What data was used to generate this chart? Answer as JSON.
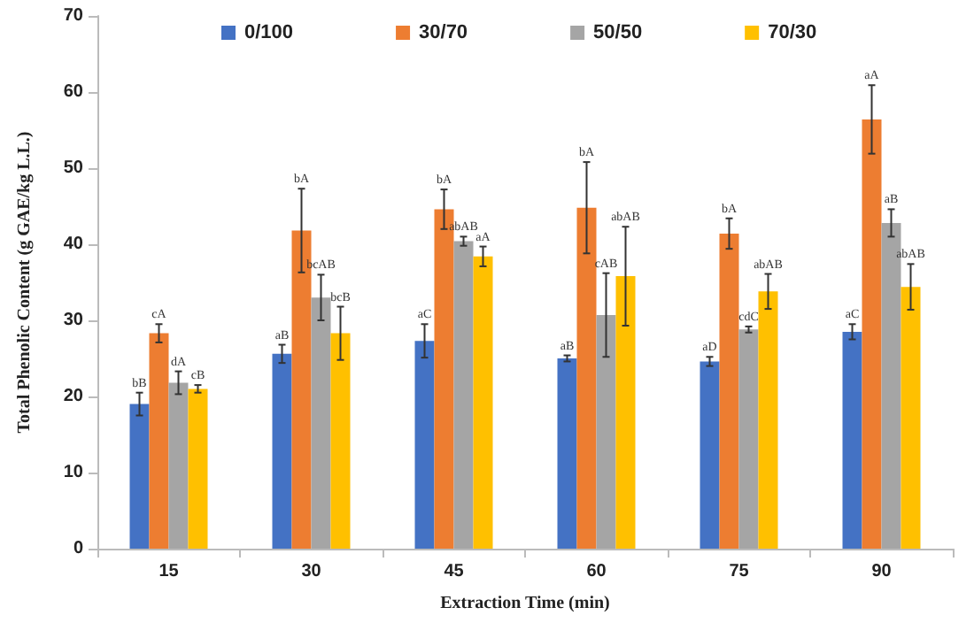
{
  "chart_data": {
    "type": "bar",
    "xlabel": "Extraction Time (min)",
    "ylabel": "Total Phenolic Content (g GAE/kg L.L.)",
    "categories": [
      "15",
      "30",
      "45",
      "60",
      "75",
      "90"
    ],
    "series": [
      {
        "name": "0/100",
        "color": "#4472c4",
        "values": [
          19,
          25.6,
          27.3,
          25,
          24.6,
          28.5
        ],
        "errors": [
          1.5,
          1.2,
          2.2,
          0.4,
          0.6,
          1
        ]
      },
      {
        "name": "30/70",
        "color": "#ed7d31",
        "values": [
          28.3,
          41.8,
          44.6,
          44.8,
          41.4,
          56.4
        ],
        "errors": [
          1.2,
          5.5,
          2.6,
          6,
          2,
          4.5
        ]
      },
      {
        "name": "50/50",
        "color": "#a5a5a5",
        "values": [
          21.8,
          33,
          40.4,
          30.7,
          28.8,
          42.8
        ],
        "errors": [
          1.5,
          3,
          0.6,
          5.5,
          0.4,
          1.8
        ]
      },
      {
        "name": "70/30",
        "color": "#ffc000",
        "values": [
          21,
          28.3,
          38.4,
          35.8,
          33.8,
          34.4
        ],
        "errors": [
          0.5,
          3.5,
          1.3,
          6.5,
          2.3,
          3
        ]
      }
    ],
    "annotations": [
      {
        "text": "bB",
        "x": "15",
        "y": 20.5
      },
      {
        "text": "cA",
        "x": "15",
        "y": 29.5
      },
      {
        "text": "dA",
        "x": "15",
        "y": 23.3
      },
      {
        "text": "cB",
        "x": "15",
        "y": 21.5
      },
      {
        "text": "aB",
        "x": "30",
        "y": 26.8
      },
      {
        "text": "bA",
        "x": "30",
        "y": 47.3
      },
      {
        "text": "bcAB",
        "x": "30",
        "y": 36
      },
      {
        "text": "bcB",
        "x": "30",
        "y": 31.8
      },
      {
        "text": "aC",
        "x": "45",
        "y": 29.5
      },
      {
        "text": "bA",
        "x": "45",
        "y": 47.2
      },
      {
        "text": "abAB",
        "x": "45",
        "y": 41
      },
      {
        "text": "aA",
        "x": "45",
        "y": 39.7
      },
      {
        "text": "aB",
        "x": "60",
        "y": 25.4
      },
      {
        "text": "bA",
        "x": "60",
        "y": 50.8
      },
      {
        "text": "cAB",
        "x": "60",
        "y": 36.2
      },
      {
        "text": "abAB",
        "x": "60",
        "y": 42.3
      },
      {
        "text": "aD",
        "x": "75",
        "y": 25.2
      },
      {
        "text": "bA",
        "x": "75",
        "y": 43.4
      },
      {
        "text": "cdC",
        "x": "75",
        "y": 29.2
      },
      {
        "text": "abAB",
        "x": "75",
        "y": 36.1
      },
      {
        "text": "aC",
        "x": "90",
        "y": 29.5
      },
      {
        "text": "aA",
        "x": "90",
        "y": 60.9
      },
      {
        "text": "aB",
        "x": "90",
        "y": 44.6
      },
      {
        "text": "abAB",
        "x": "90",
        "y": 37.4
      }
    ],
    "ylim": [
      0,
      70
    ],
    "yticks": [
      0,
      10,
      20,
      30,
      40,
      50,
      60,
      70
    ],
    "grid": false,
    "legend": "top"
  }
}
